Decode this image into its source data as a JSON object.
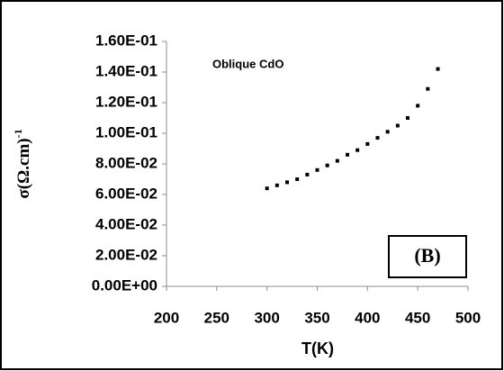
{
  "chart_data": {
    "type": "scatter",
    "x_label": "T(K)",
    "y_label": "σ(Ω.cm)",
    "y_label_superscript": "-1",
    "annotation": "Oblique CdO",
    "panel_label": "(B)",
    "color": "#000000",
    "grid": false,
    "x": [
      300,
      310,
      320,
      330,
      340,
      350,
      360,
      370,
      380,
      390,
      400,
      410,
      420,
      430,
      440,
      450,
      460,
      470
    ],
    "values": [
      0.064,
      0.066,
      0.068,
      0.07,
      0.073,
      0.076,
      0.079,
      0.082,
      0.086,
      0.089,
      0.093,
      0.097,
      0.101,
      0.105,
      0.11,
      0.118,
      0.129,
      0.142
    ],
    "xlim": [
      200,
      500
    ],
    "xticks": [
      200,
      250,
      300,
      350,
      400,
      450,
      500
    ],
    "ylim": [
      0,
      0.16
    ],
    "yticks": [
      {
        "value": 0,
        "label": "0.00E+00"
      },
      {
        "value": 0.02,
        "label": "2.00E-02"
      },
      {
        "value": 0.04,
        "label": "4.00E-02"
      },
      {
        "value": 0.06,
        "label": "6.00E-02"
      },
      {
        "value": 0.08,
        "label": "8.00E-02"
      },
      {
        "value": 0.1,
        "label": "1.00E-01"
      },
      {
        "value": 0.12,
        "label": "1.20E-01"
      },
      {
        "value": 0.14,
        "label": "1.40E-01"
      },
      {
        "value": 0.16,
        "label": "1.60E-01"
      }
    ]
  }
}
